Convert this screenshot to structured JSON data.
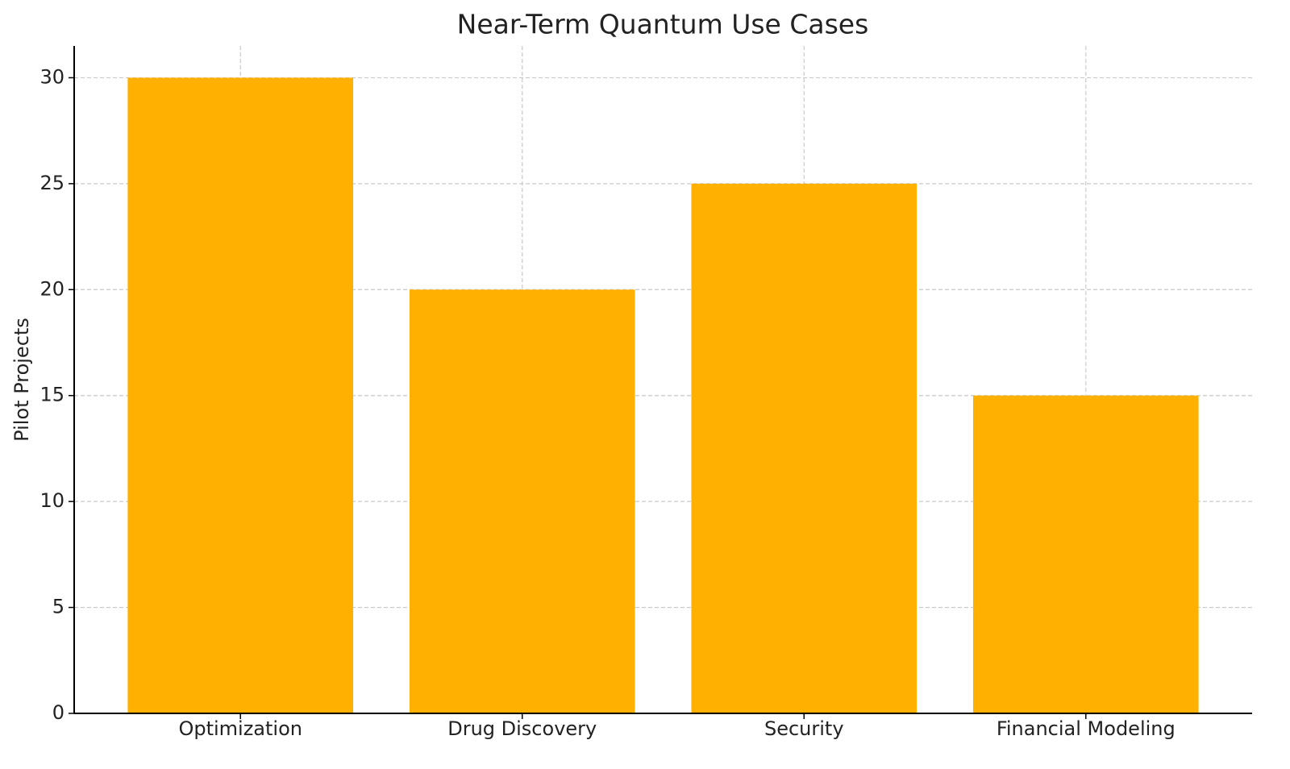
{
  "chart_data": {
    "type": "bar",
    "title": "Near-Term Quantum Use Cases",
    "y_label": "Pilot Projects",
    "categories": [
      "Optimization",
      "Drug Discovery",
      "Security",
      "Financial Modeling"
    ],
    "values": [
      30,
      20,
      25,
      15
    ],
    "color": "#ffb000",
    "ylim": [
      0,
      31.5
    ],
    "yticks": [
      0,
      5,
      10,
      15,
      20,
      25,
      30
    ],
    "grid": true
  }
}
